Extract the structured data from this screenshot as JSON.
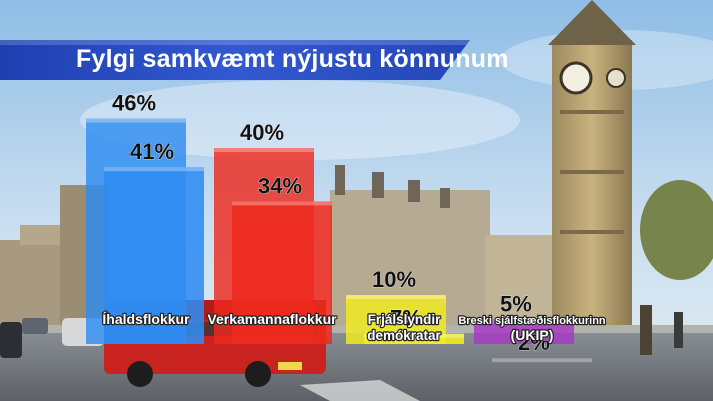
{
  "title": "Fylgi samkvæmt nýjustu könnunum",
  "colors": {
    "banner": "#2a4fc4",
    "banner_dark": "#1a3590",
    "ihaldsflokkur": "#2f8cf2",
    "verkamannaflokkur": "#ee2a1e",
    "frjalslyndir": "#f2ee1c",
    "ukip": "#a638c6"
  },
  "chart_data": {
    "type": "bar",
    "title": "Fylgi samkvæmt nýjustu könnunum",
    "categories": [
      "Íhaldsflokkur",
      "Verkamannaflokkur",
      "Frjálslyndir demókratar",
      "Breski sjálfstæðisflokkurinn (UKIP)"
    ],
    "category_label_lines": [
      [
        "Íhaldsflokkur"
      ],
      [
        "Verkamannaflokkur"
      ],
      [
        "Frjálslyndir",
        "demókratar"
      ],
      [
        "Breski sjálfstæðisflokkurinn",
        "(UKIP)"
      ]
    ],
    "series": [
      {
        "values": [
          46,
          40,
          10,
          5
        ]
      },
      {
        "values": [
          41,
          34,
          7,
          2
        ]
      }
    ],
    "value_labels": [
      [
        "46%",
        "40%",
        "10%",
        "5%"
      ],
      [
        "41%",
        "34%",
        "7%",
        "2%"
      ]
    ],
    "ylim": [
      0,
      50
    ],
    "grid": false,
    "legend": "none"
  }
}
